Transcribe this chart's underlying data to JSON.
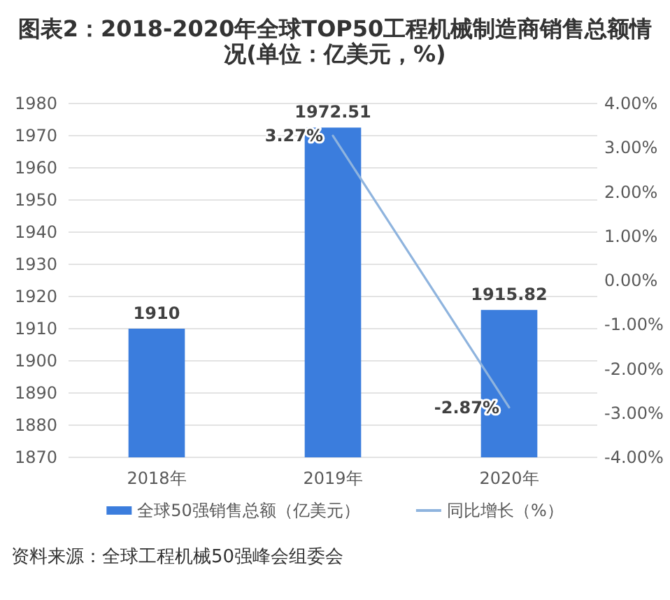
{
  "chart_data": {
    "type": "bar",
    "title": "图表2：2018-2020年全球TOP50工程机械制造商销售总额情况(单位：亿美元，%)",
    "categories": [
      "2018年",
      "2019年",
      "2020年"
    ],
    "series": [
      {
        "name": "全球50强销售总额（亿美元）",
        "type": "bar",
        "color": "#3b7ddd",
        "values": [
          1910,
          1972.51,
          1915.82
        ],
        "value_labels": [
          "1910",
          "1972.51",
          "1915.82"
        ]
      },
      {
        "name": "同比增长（%）",
        "type": "line",
        "axis": "y2",
        "color": "#8fb4de",
        "values": [
          null,
          3.27,
          -2.87
        ],
        "value_labels": [
          null,
          "3.27%",
          "-2.87%"
        ]
      }
    ],
    "ylim": [
      1870,
      1980
    ],
    "yticks": [
      1870,
      1880,
      1890,
      1900,
      1910,
      1920,
      1930,
      1940,
      1950,
      1960,
      1970,
      1980
    ],
    "y2lim": [
      -4,
      4
    ],
    "y2ticks": [
      {
        "value": -4,
        "label": "-4.00%"
      },
      {
        "value": -3,
        "label": "-3.00%"
      },
      {
        "value": -2,
        "label": "-2.00%"
      },
      {
        "value": -1,
        "label": "-1.00%"
      },
      {
        "value": 0,
        "label": "0.00%"
      },
      {
        "value": 1,
        "label": "1.00%"
      },
      {
        "value": 2,
        "label": "2.00%"
      },
      {
        "value": 3,
        "label": "3.00%"
      },
      {
        "value": 4,
        "label": "4.00%"
      }
    ],
    "grid": "y",
    "legend": "bottom",
    "annotations": [
      "资料来源：全球工程机械50强峰会组委会"
    ]
  }
}
